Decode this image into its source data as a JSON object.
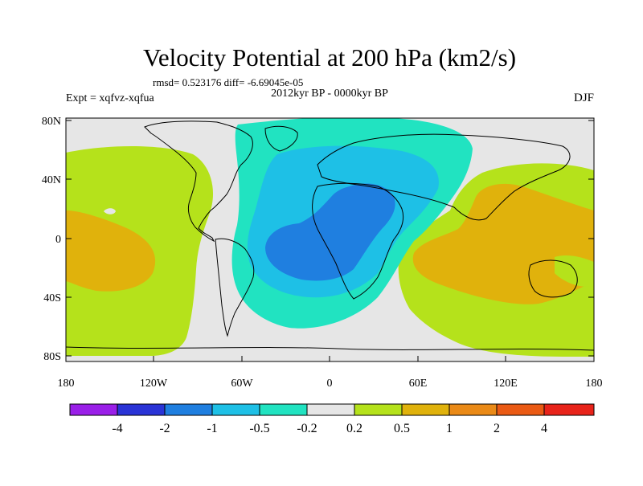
{
  "title": "Velocity Potential at 200 hPa (km2/s)",
  "stats_line": "rmsd= 0.523176 diff= -6.69045e-05",
  "experiment_label": "Expt = xqfvz-xqfua",
  "period_label": "2012kyr BP - 0000kyr BP",
  "season_label": "DJF",
  "map": {
    "y_ticks": [
      "80N",
      "40N",
      "0",
      "40S",
      "80S"
    ],
    "x_ticks": [
      "180",
      "120W",
      "60W",
      "0",
      "60E",
      "120E",
      "180"
    ]
  },
  "colorbar": {
    "colors": [
      "#9a1fe8",
      "#2a34d6",
      "#1f7fe0",
      "#1ec0e6",
      "#21e3c1",
      "#e6e6e6",
      "#b5e21b",
      "#e0b20c",
      "#ea8a17",
      "#ea5a14",
      "#e8231a"
    ],
    "labels": [
      "-4",
      "-2",
      "-1",
      "-0.5",
      "-0.2",
      "0.2",
      "0.5",
      "1",
      "2",
      "4"
    ]
  }
}
